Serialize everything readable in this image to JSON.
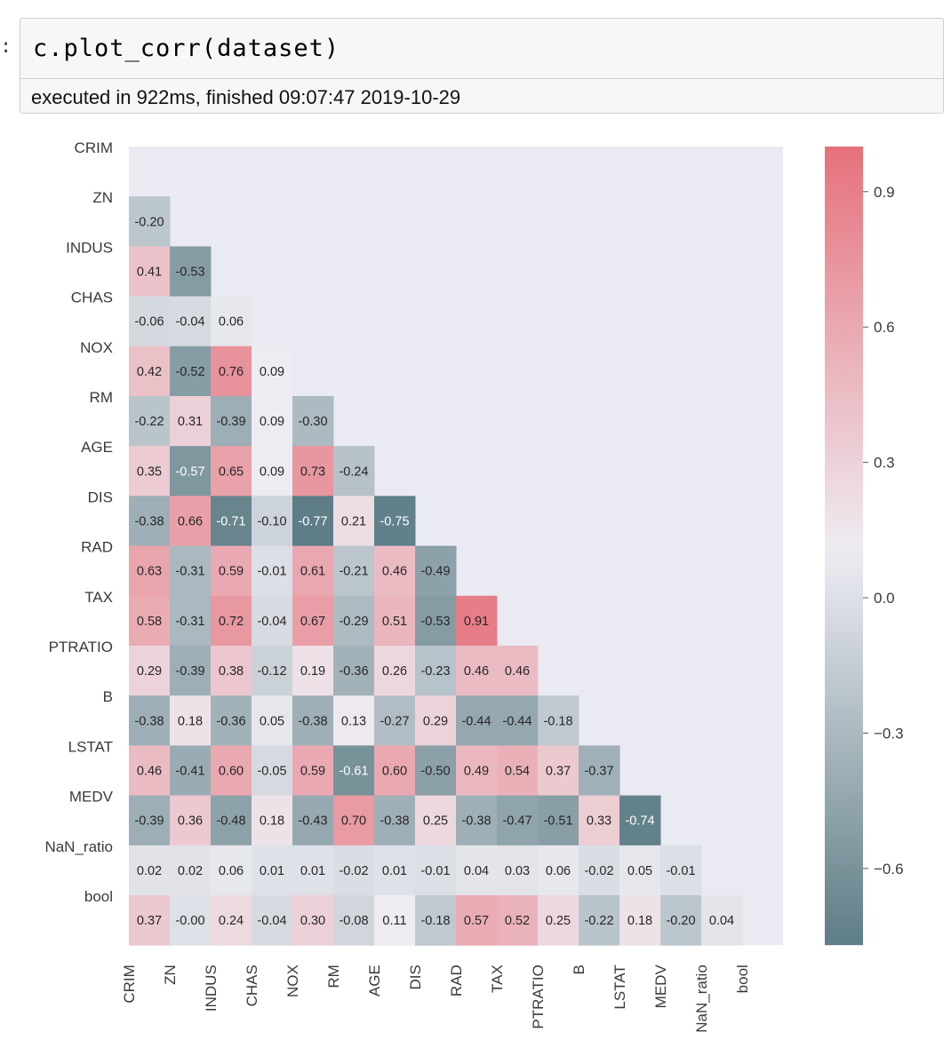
{
  "notebook": {
    "prompt": ":",
    "code": "c.plot_corr(dataset)",
    "exec_info": "executed in 922ms, finished 09:07:47 2019-10-29"
  },
  "colors": {
    "negative": "#5e7d86",
    "neutral": "#eeedf3",
    "positive": "#e6717b",
    "background": "#eaeaf2"
  },
  "chart_data": {
    "type": "heatmap",
    "variables": [
      "CRIM",
      "ZN",
      "INDUS",
      "CHAS",
      "NOX",
      "RM",
      "AGE",
      "DIS",
      "RAD",
      "TAX",
      "PTRATIO",
      "B",
      "LSTAT",
      "MEDV",
      "NaN_ratio",
      "bool"
    ],
    "lower_triangle": [
      [],
      [
        "-0.20"
      ],
      [
        "0.41",
        "-0.53"
      ],
      [
        "-0.06",
        "-0.04",
        "0.06"
      ],
      [
        "0.42",
        "-0.52",
        "0.76",
        "0.09"
      ],
      [
        "-0.22",
        "0.31",
        "-0.39",
        "0.09",
        "-0.30"
      ],
      [
        "0.35",
        "-0.57",
        "0.65",
        "0.09",
        "0.73",
        "-0.24"
      ],
      [
        "-0.38",
        "0.66",
        "-0.71",
        "-0.10",
        "-0.77",
        "0.21",
        "-0.75"
      ],
      [
        "0.63",
        "-0.31",
        "0.59",
        "-0.01",
        "0.61",
        "-0.21",
        "0.46",
        "-0.49"
      ],
      [
        "0.58",
        "-0.31",
        "0.72",
        "-0.04",
        "0.67",
        "-0.29",
        "0.51",
        "-0.53",
        "0.91"
      ],
      [
        "0.29",
        "-0.39",
        "0.38",
        "-0.12",
        "0.19",
        "-0.36",
        "0.26",
        "-0.23",
        "0.46",
        "0.46"
      ],
      [
        "-0.38",
        "0.18",
        "-0.36",
        "0.05",
        "-0.38",
        "0.13",
        "-0.27",
        "0.29",
        "-0.44",
        "-0.44",
        "-0.18"
      ],
      [
        "0.46",
        "-0.41",
        "0.60",
        "-0.05",
        "0.59",
        "-0.61",
        "0.60",
        "-0.50",
        "0.49",
        "0.54",
        "0.37",
        "-0.37"
      ],
      [
        "-0.39",
        "0.36",
        "-0.48",
        "0.18",
        "-0.43",
        "0.70",
        "-0.38",
        "0.25",
        "-0.38",
        "-0.47",
        "-0.51",
        "0.33",
        "-0.74"
      ],
      [
        "0.02",
        "0.02",
        "0.06",
        "0.01",
        "0.01",
        "-0.02",
        "0.01",
        "-0.01",
        "0.04",
        "0.03",
        "0.06",
        "-0.02",
        "0.05",
        "-0.01"
      ],
      [
        "0.37",
        "-0.00",
        "0.24",
        "-0.04",
        "0.30",
        "-0.08",
        "0.11",
        "-0.18",
        "0.57",
        "0.52",
        "0.25",
        "-0.22",
        "0.18",
        "-0.20",
        "0.04"
      ]
    ],
    "colorbar": {
      "min": -0.77,
      "max": 1.0,
      "ticks": [
        "0.9",
        "0.6",
        "0.3",
        "0.0",
        "-0.3",
        "-0.6"
      ]
    },
    "mask": "upper-triangle"
  }
}
